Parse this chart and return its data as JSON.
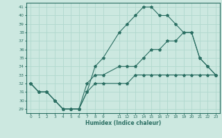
{
  "xlabel": "Humidex (Indice chaleur)",
  "ylabel": "",
  "bg_color": "#cce8e0",
  "line_color": "#2a6e62",
  "grid_color": "#b0d8ce",
  "xlim": [
    -0.5,
    23.5
  ],
  "ylim": [
    28.5,
    41.5
  ],
  "yticks": [
    29,
    30,
    31,
    32,
    33,
    34,
    35,
    36,
    37,
    38,
    39,
    40,
    41
  ],
  "xticks": [
    0,
    1,
    2,
    3,
    4,
    5,
    6,
    7,
    8,
    9,
    11,
    12,
    13,
    14,
    15,
    16,
    17,
    18,
    19,
    20,
    21,
    22,
    23
  ],
  "xtick_labels": [
    "0",
    "1",
    "2",
    "3",
    "4",
    "5",
    "6",
    "7",
    "8",
    "9",
    "11",
    "12",
    "13",
    "14",
    "15",
    "16",
    "17",
    "18",
    "19",
    "20",
    "21",
    "22",
    "23"
  ],
  "series1": {
    "x": [
      0,
      1,
      2,
      3,
      4,
      5,
      6,
      7,
      8,
      9,
      11,
      12,
      13,
      14,
      15,
      16,
      17,
      18,
      19,
      20,
      21,
      22,
      23
    ],
    "y": [
      32,
      31,
      31,
      30,
      29,
      29,
      29,
      31,
      34,
      35,
      38,
      39,
      40,
      41,
      41,
      40,
      40,
      39,
      38,
      38,
      35,
      34,
      33
    ]
  },
  "series2": {
    "x": [
      0,
      1,
      2,
      3,
      4,
      5,
      6,
      7,
      8,
      9,
      11,
      12,
      13,
      14,
      15,
      16,
      17,
      18,
      19,
      20,
      21,
      22,
      23
    ],
    "y": [
      32,
      31,
      31,
      30,
      29,
      29,
      29,
      32,
      33,
      33,
      34,
      34,
      34,
      35,
      36,
      36,
      37,
      37,
      38,
      38,
      35,
      34,
      33
    ]
  },
  "series3": {
    "x": [
      0,
      1,
      2,
      3,
      4,
      5,
      6,
      7,
      8,
      9,
      11,
      12,
      13,
      14,
      15,
      16,
      17,
      18,
      19,
      20,
      21,
      22,
      23
    ],
    "y": [
      32,
      31,
      31,
      30,
      29,
      29,
      29,
      31,
      32,
      32,
      32,
      32,
      33,
      33,
      33,
      33,
      33,
      33,
      33,
      33,
      33,
      33,
      33
    ]
  }
}
